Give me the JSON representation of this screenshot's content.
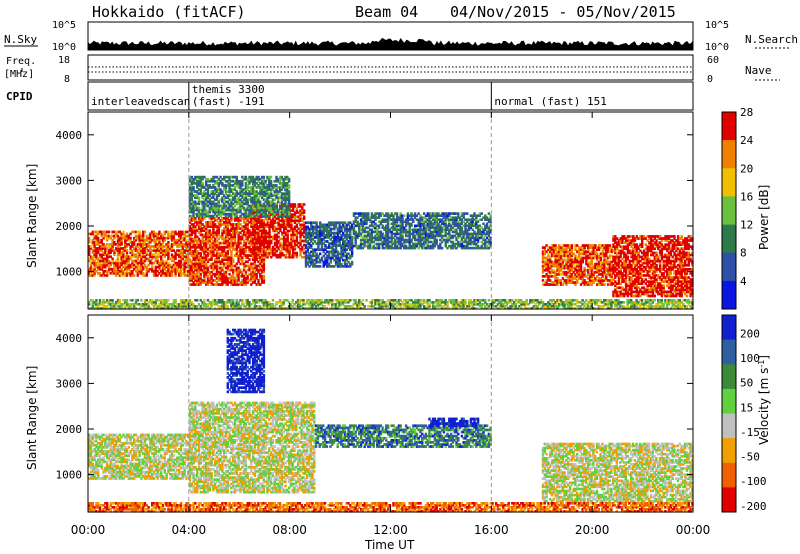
{
  "header": {
    "title": "Hokkaido (fitACF)",
    "beam": "Beam 04",
    "date_range": "04/Nov/2015 - 05/Nov/2015"
  },
  "top_panels": {
    "nsky_label": "N.Sky",
    "nsearch_label": "N.Search",
    "nsky_ticks_left": [
      "10^5",
      "10^0"
    ],
    "nsky_ticks_right": [
      "10^5",
      "10^0"
    ],
    "freq_label_top": "Freq.",
    "freq_label_unit": "[MHz]",
    "freq_ticks": [
      "18",
      "8"
    ],
    "nave_label": "Nave",
    "nave_ticks": [
      "60",
      "0"
    ],
    "cpid_label": "CPID",
    "cpid_segments": [
      {
        "start_h": 0,
        "line1": "",
        "line2": "interleavedscan"
      },
      {
        "start_h": 4,
        "line1": "themis 3300",
        "line2": "(fast) -191"
      },
      {
        "start_h": 16,
        "line1": "",
        "line2": "normal (fast) 151"
      }
    ]
  },
  "chart_data": [
    {
      "type": "heatmap",
      "name": "power",
      "xlabel": "Time UT",
      "ylabel": "Slant Range [km]",
      "xlim": [
        0,
        24
      ],
      "ylim": [
        180,
        4500
      ],
      "x_ticks": [
        "00:00",
        "04:00",
        "08:00",
        "12:00",
        "16:00",
        "20:00",
        "00:00"
      ],
      "y_ticks": [
        "1000",
        "2000",
        "3000",
        "4000"
      ],
      "colorbar": {
        "label": "Power [dB]",
        "ticks": [
          "4",
          "8",
          "12",
          "16",
          "20",
          "24",
          "28"
        ],
        "colors": [
          "#0a16e0",
          "#2f4fa8",
          "#2f7a4a",
          "#6cc040",
          "#f0c000",
          "#f08000",
          "#e00000"
        ]
      },
      "regions": [
        {
          "t0": 0.0,
          "t1": 4.0,
          "r0": 900,
          "r1": 1900,
          "val": 0.85
        },
        {
          "t0": 4.0,
          "t1": 7.0,
          "r0": 700,
          "r1": 2200,
          "val": 0.9
        },
        {
          "t0": 6.5,
          "t1": 8.6,
          "r0": 1300,
          "r1": 2500,
          "val": 0.95
        },
        {
          "t0": 4.0,
          "t1": 8.0,
          "r0": 2200,
          "r1": 3100,
          "val": 0.35
        },
        {
          "t0": 8.6,
          "t1": 10.5,
          "r0": 1100,
          "r1": 2100,
          "val": 0.25
        },
        {
          "t0": 10.5,
          "t1": 16.0,
          "r0": 1500,
          "r1": 2300,
          "val": 0.3
        },
        {
          "t0": 18.0,
          "t1": 20.8,
          "r0": 700,
          "r1": 1600,
          "val": 0.85
        },
        {
          "t0": 20.8,
          "t1": 24.0,
          "r0": 450,
          "r1": 1800,
          "val": 0.95
        },
        {
          "t0": 0.0,
          "t1": 24.0,
          "r0": 180,
          "r1": 400,
          "val": 0.5
        }
      ]
    },
    {
      "type": "heatmap",
      "name": "velocity",
      "xlabel": "Time UT",
      "ylabel": "Slant Range [km]",
      "xlim": [
        0,
        24
      ],
      "ylim": [
        180,
        4500
      ],
      "x_ticks": [
        "00:00",
        "04:00",
        "08:00",
        "12:00",
        "16:00",
        "20:00",
        "00:00"
      ],
      "y_ticks": [
        "1000",
        "2000",
        "3000",
        "4000"
      ],
      "colorbar": {
        "label": "Velocity [m s^-1]",
        "ticks": [
          "200",
          "100",
          "50",
          "15",
          "-15",
          "-50",
          "-100",
          "-200"
        ],
        "colors": [
          "#1020d0",
          "#2f5fa0",
          "#3a8a3a",
          "#60d040",
          "#c0c0c0",
          "#f0a000",
          "#f06000",
          "#e00000"
        ]
      },
      "regions": [
        {
          "t0": 0.0,
          "t1": 4.0,
          "r0": 900,
          "r1": 1900,
          "val": 0.45
        },
        {
          "t0": 4.0,
          "t1": 9.0,
          "r0": 600,
          "r1": 2600,
          "val": 0.45
        },
        {
          "t0": 9.0,
          "t1": 16.0,
          "r0": 1600,
          "r1": 2100,
          "val": 0.75
        },
        {
          "t0": 13.5,
          "t1": 15.5,
          "r0": 2050,
          "r1": 2250,
          "val": 1.0
        },
        {
          "t0": 5.5,
          "t1": 7.0,
          "r0": 2800,
          "r1": 4200,
          "val": 1.0
        },
        {
          "t0": 18.0,
          "t1": 24.0,
          "r0": 400,
          "r1": 1700,
          "val": 0.45
        },
        {
          "t0": 0.0,
          "t1": 24.0,
          "r0": 180,
          "r1": 400,
          "val": 0.2
        }
      ]
    }
  ]
}
